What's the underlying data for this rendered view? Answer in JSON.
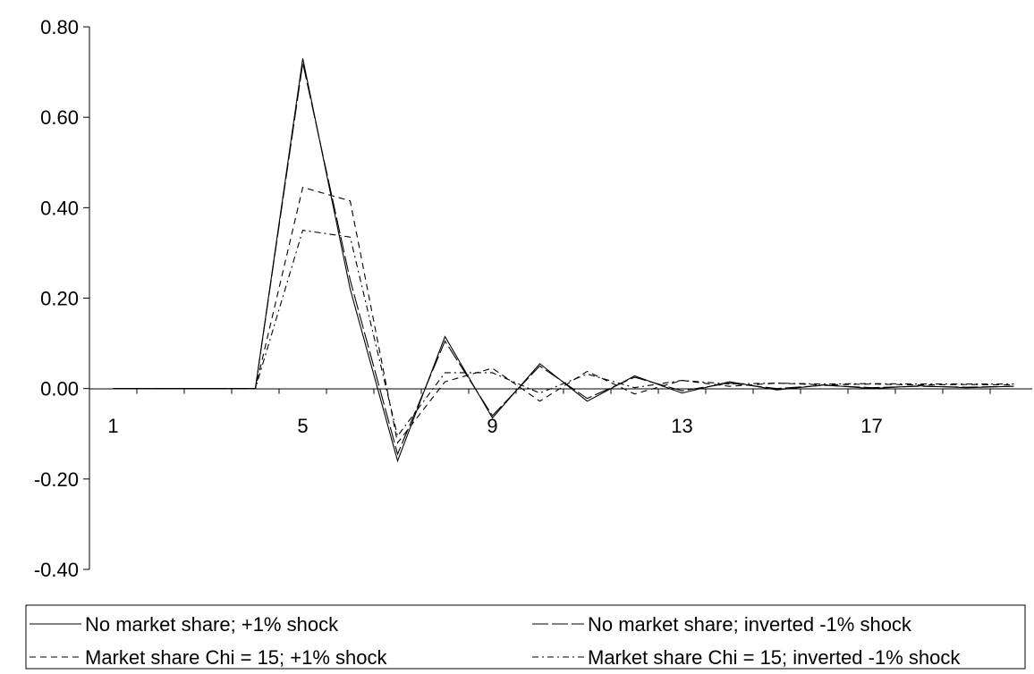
{
  "chart_data": {
    "type": "line",
    "title": "",
    "xlabel": "",
    "ylabel": "",
    "x": [
      1,
      2,
      3,
      4,
      5,
      6,
      7,
      8,
      9,
      10,
      11,
      12,
      13,
      14,
      15,
      16,
      17,
      18,
      19,
      20
    ],
    "x_tick_labels": [
      "1",
      "5",
      "9",
      "13",
      "17"
    ],
    "x_tick_values": [
      1,
      5,
      9,
      13,
      17
    ],
    "y_tick_labels": [
      "0.80",
      "0.60",
      "0.40",
      "0.20",
      "0.00",
      "-0.20",
      "-0.40"
    ],
    "y_tick_values": [
      0.8,
      0.6,
      0.4,
      0.2,
      0.0,
      -0.2,
      -0.4
    ],
    "ylim": [
      -0.4,
      0.8
    ],
    "grid": false,
    "legend_position": "bottom",
    "series": [
      {
        "name": "No market share; +1% shock",
        "dash": "solid",
        "values": [
          0,
          0,
          0,
          0,
          0.73,
          0.22,
          -0.16,
          0.115,
          -0.065,
          0.055,
          -0.028,
          0.028,
          -0.01,
          0.015,
          -0.003,
          0.008,
          0.0,
          0.006,
          0.002,
          0.005
        ]
      },
      {
        "name": "No market share; inverted -1% shock",
        "dash": "long-dash",
        "values": [
          0,
          0,
          0,
          0,
          0.72,
          0.24,
          -0.145,
          0.105,
          -0.06,
          0.05,
          -0.022,
          0.025,
          -0.005,
          0.012,
          0.0,
          0.007,
          0.002,
          0.005,
          0.003,
          0.005
        ]
      },
      {
        "name": "Market share Chi = 15; +1% shock",
        "dash": "dash",
        "values": [
          0,
          0,
          0,
          0,
          0.445,
          0.415,
          -0.12,
          0.015,
          0.045,
          -0.028,
          0.038,
          -0.012,
          0.018,
          0.005,
          0.012,
          0.008,
          0.01,
          0.008,
          0.009,
          0.008
        ]
      },
      {
        "name": "Market share Chi = 15; inverted -1% shock",
        "dash": "dash-dot",
        "values": [
          0,
          0,
          0,
          0,
          0.35,
          0.335,
          -0.105,
          0.035,
          0.035,
          -0.01,
          0.032,
          0.002,
          0.018,
          0.01,
          0.012,
          0.01,
          0.011,
          0.01,
          0.01,
          0.01
        ]
      }
    ]
  }
}
